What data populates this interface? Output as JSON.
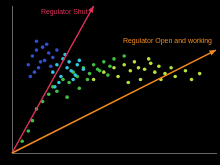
{
  "chart_data": {
    "type": "scatter",
    "xlim": [
      0,
      100
    ],
    "ylim": [
      0,
      100
    ],
    "tick_labels": false,
    "grid": false,
    "series": [
      {
        "color": "#3050d0",
        "x": [
          8,
          10,
          12,
          13,
          15,
          16,
          18,
          11,
          14,
          17,
          20,
          9,
          19,
          22,
          12
        ],
        "values": [
          60,
          66,
          70,
          58,
          72,
          63,
          68,
          55,
          62,
          74,
          65,
          52,
          59,
          70,
          76
        ]
      },
      {
        "color": "#30c8e0",
        "x": [
          20,
          22,
          24,
          25,
          27,
          28,
          30,
          23,
          26,
          29,
          32,
          21,
          31,
          33,
          35
        ],
        "values": [
          55,
          60,
          52,
          64,
          58,
          62,
          50,
          48,
          67,
          56,
          60,
          45,
          53,
          63,
          57
        ]
      },
      {
        "color": "#40c040",
        "x": [
          5,
          8,
          10,
          12,
          15,
          18,
          20,
          22,
          25,
          28,
          30,
          32,
          35,
          38,
          40,
          42,
          45,
          48,
          50,
          55,
          27,
          33,
          37,
          43,
          47
        ],
        "values": [
          8,
          15,
          22,
          30,
          35,
          40,
          45,
          42,
          50,
          48,
          55,
          52,
          58,
          54,
          60,
          57,
          62,
          59,
          64,
          66,
          38,
          44,
          50,
          56,
          53
        ]
      },
      {
        "color": "#b8e040",
        "x": [
          40,
          45,
          50,
          52,
          55,
          58,
          60,
          62,
          65,
          68,
          70,
          72,
          75,
          78,
          80,
          85,
          88,
          92,
          57,
          63,
          67,
          73
        ],
        "values": [
          50,
          55,
          58,
          52,
          60,
          56,
          62,
          58,
          57,
          61,
          55,
          59,
          54,
          58,
          52,
          56,
          50,
          54,
          48,
          50,
          64,
          50
        ]
      }
    ],
    "annotations": [
      {
        "text": "Regulator Shut",
        "color": "#e0305a",
        "from": [
          0,
          0
        ],
        "to": [
          40,
          100
        ]
      },
      {
        "text": "Regulator Open and working",
        "color": "#f08a20",
        "from": [
          0,
          0
        ],
        "to": [
          100,
          70
        ]
      }
    ]
  }
}
